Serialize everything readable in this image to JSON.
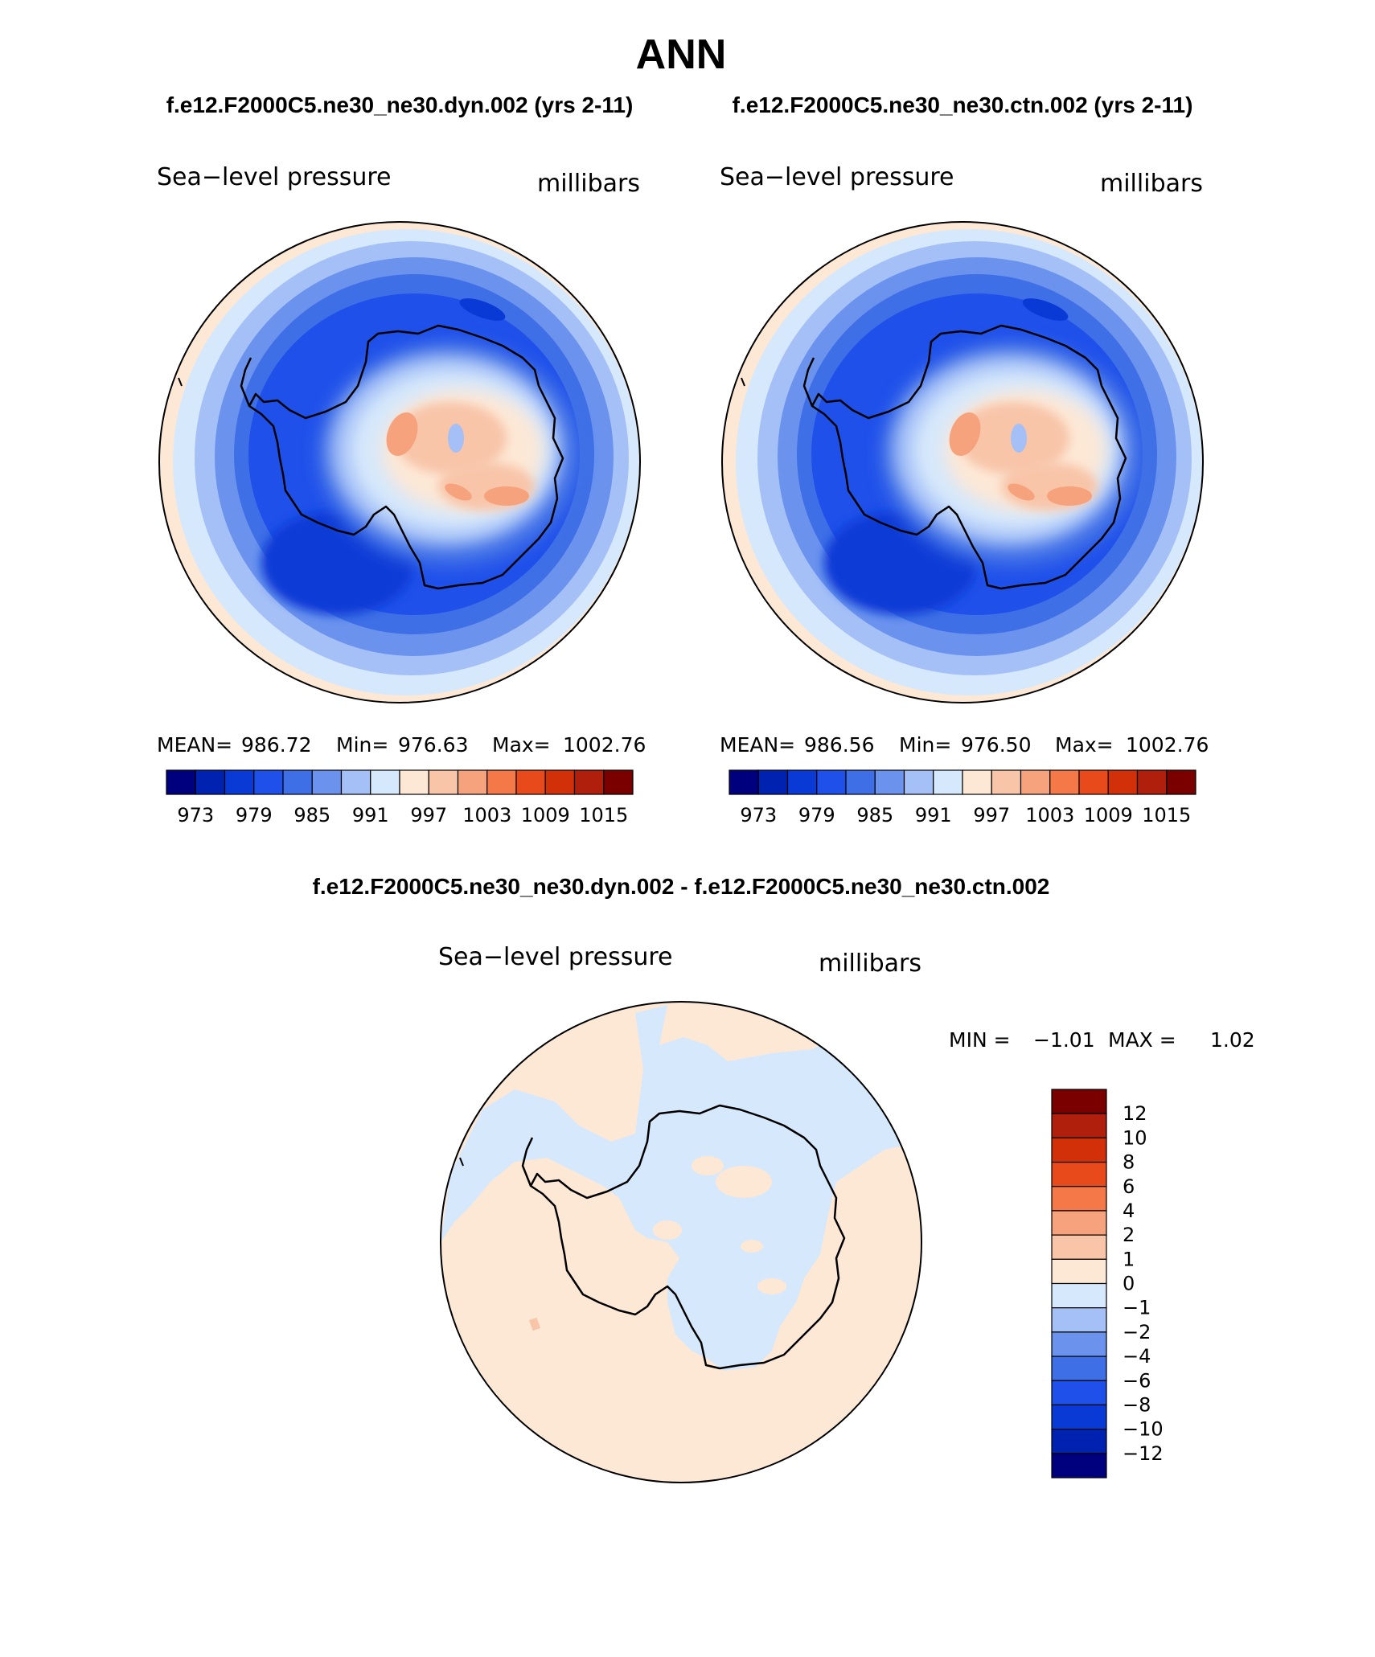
{
  "title": "ANN",
  "chart_data": [
    {
      "type": "heatmap",
      "panel": "top-left",
      "case_title": "f.e12.F2000C5.ne30_ne30.dyn.002 (yrs 2-11)",
      "variable": "Sea−level pressure",
      "units": "millibars",
      "projection": "south polar stereographic",
      "stats": {
        "mean_label": "MEAN=",
        "mean": "986.72",
        "min_label": "Min=",
        "min": "976.63",
        "max_label": "Max=",
        "max": "1002.76"
      },
      "colorbar": {
        "orientation": "horizontal",
        "levels": [
          973,
          976,
          979,
          982,
          985,
          988,
          991,
          994,
          997,
          1000,
          1003,
          1006,
          1009,
          1012,
          1015
        ],
        "tick_labels": [
          "973",
          "979",
          "985",
          "991",
          "997",
          "1003",
          "1009",
          "1015"
        ]
      }
    },
    {
      "type": "heatmap",
      "panel": "top-right",
      "case_title": "f.e12.F2000C5.ne30_ne30.ctn.002 (yrs 2-11)",
      "variable": "Sea−level pressure",
      "units": "millibars",
      "projection": "south polar stereographic",
      "stats": {
        "mean_label": "MEAN=",
        "mean": "986.56",
        "min_label": "Min=",
        "min": "976.50",
        "max_label": "Max=",
        "max": "1002.76"
      },
      "colorbar": {
        "orientation": "horizontal",
        "levels": [
          973,
          976,
          979,
          982,
          985,
          988,
          991,
          994,
          997,
          1000,
          1003,
          1006,
          1009,
          1012,
          1015
        ],
        "tick_labels": [
          "973",
          "979",
          "985",
          "991",
          "997",
          "1003",
          "1009",
          "1015"
        ]
      }
    },
    {
      "type": "heatmap",
      "panel": "bottom",
      "case_title": "f.e12.F2000C5.ne30_ne30.dyn.002 - f.e12.F2000C5.ne30_ne30.ctn.002",
      "variable": "Sea−level pressure",
      "units": "millibars",
      "projection": "south polar stereographic",
      "stats": {
        "min_label": "MIN =",
        "min": "−1.01",
        "max_label": "MAX =",
        "max": "1.02"
      },
      "colorbar": {
        "orientation": "vertical",
        "levels": [
          -12,
          -10,
          -8,
          -6,
          -4,
          -2,
          -1,
          0,
          1,
          2,
          4,
          6,
          8,
          10,
          12
        ],
        "tick_labels": [
          "12",
          "10",
          "8",
          "6",
          "4",
          "2",
          "1",
          "0",
          "−1",
          "−2",
          "−4",
          "−6",
          "−8",
          "−10",
          "−12"
        ]
      }
    }
  ],
  "palette": [
    "#00007f",
    "#0022b0",
    "#0a3ad6",
    "#1f50ea",
    "#3f6fe6",
    "#6b93ee",
    "#a4c0f7",
    "#d6e8fb",
    "#fde8d6",
    "#f8c5a9",
    "#f6a27d",
    "#f47848",
    "#e94a1c",
    "#d13009",
    "#b01f0c",
    "#7a0000"
  ],
  "colors": {
    "ocean_deep": "#1a44d8",
    "land_outline": "#000000"
  }
}
